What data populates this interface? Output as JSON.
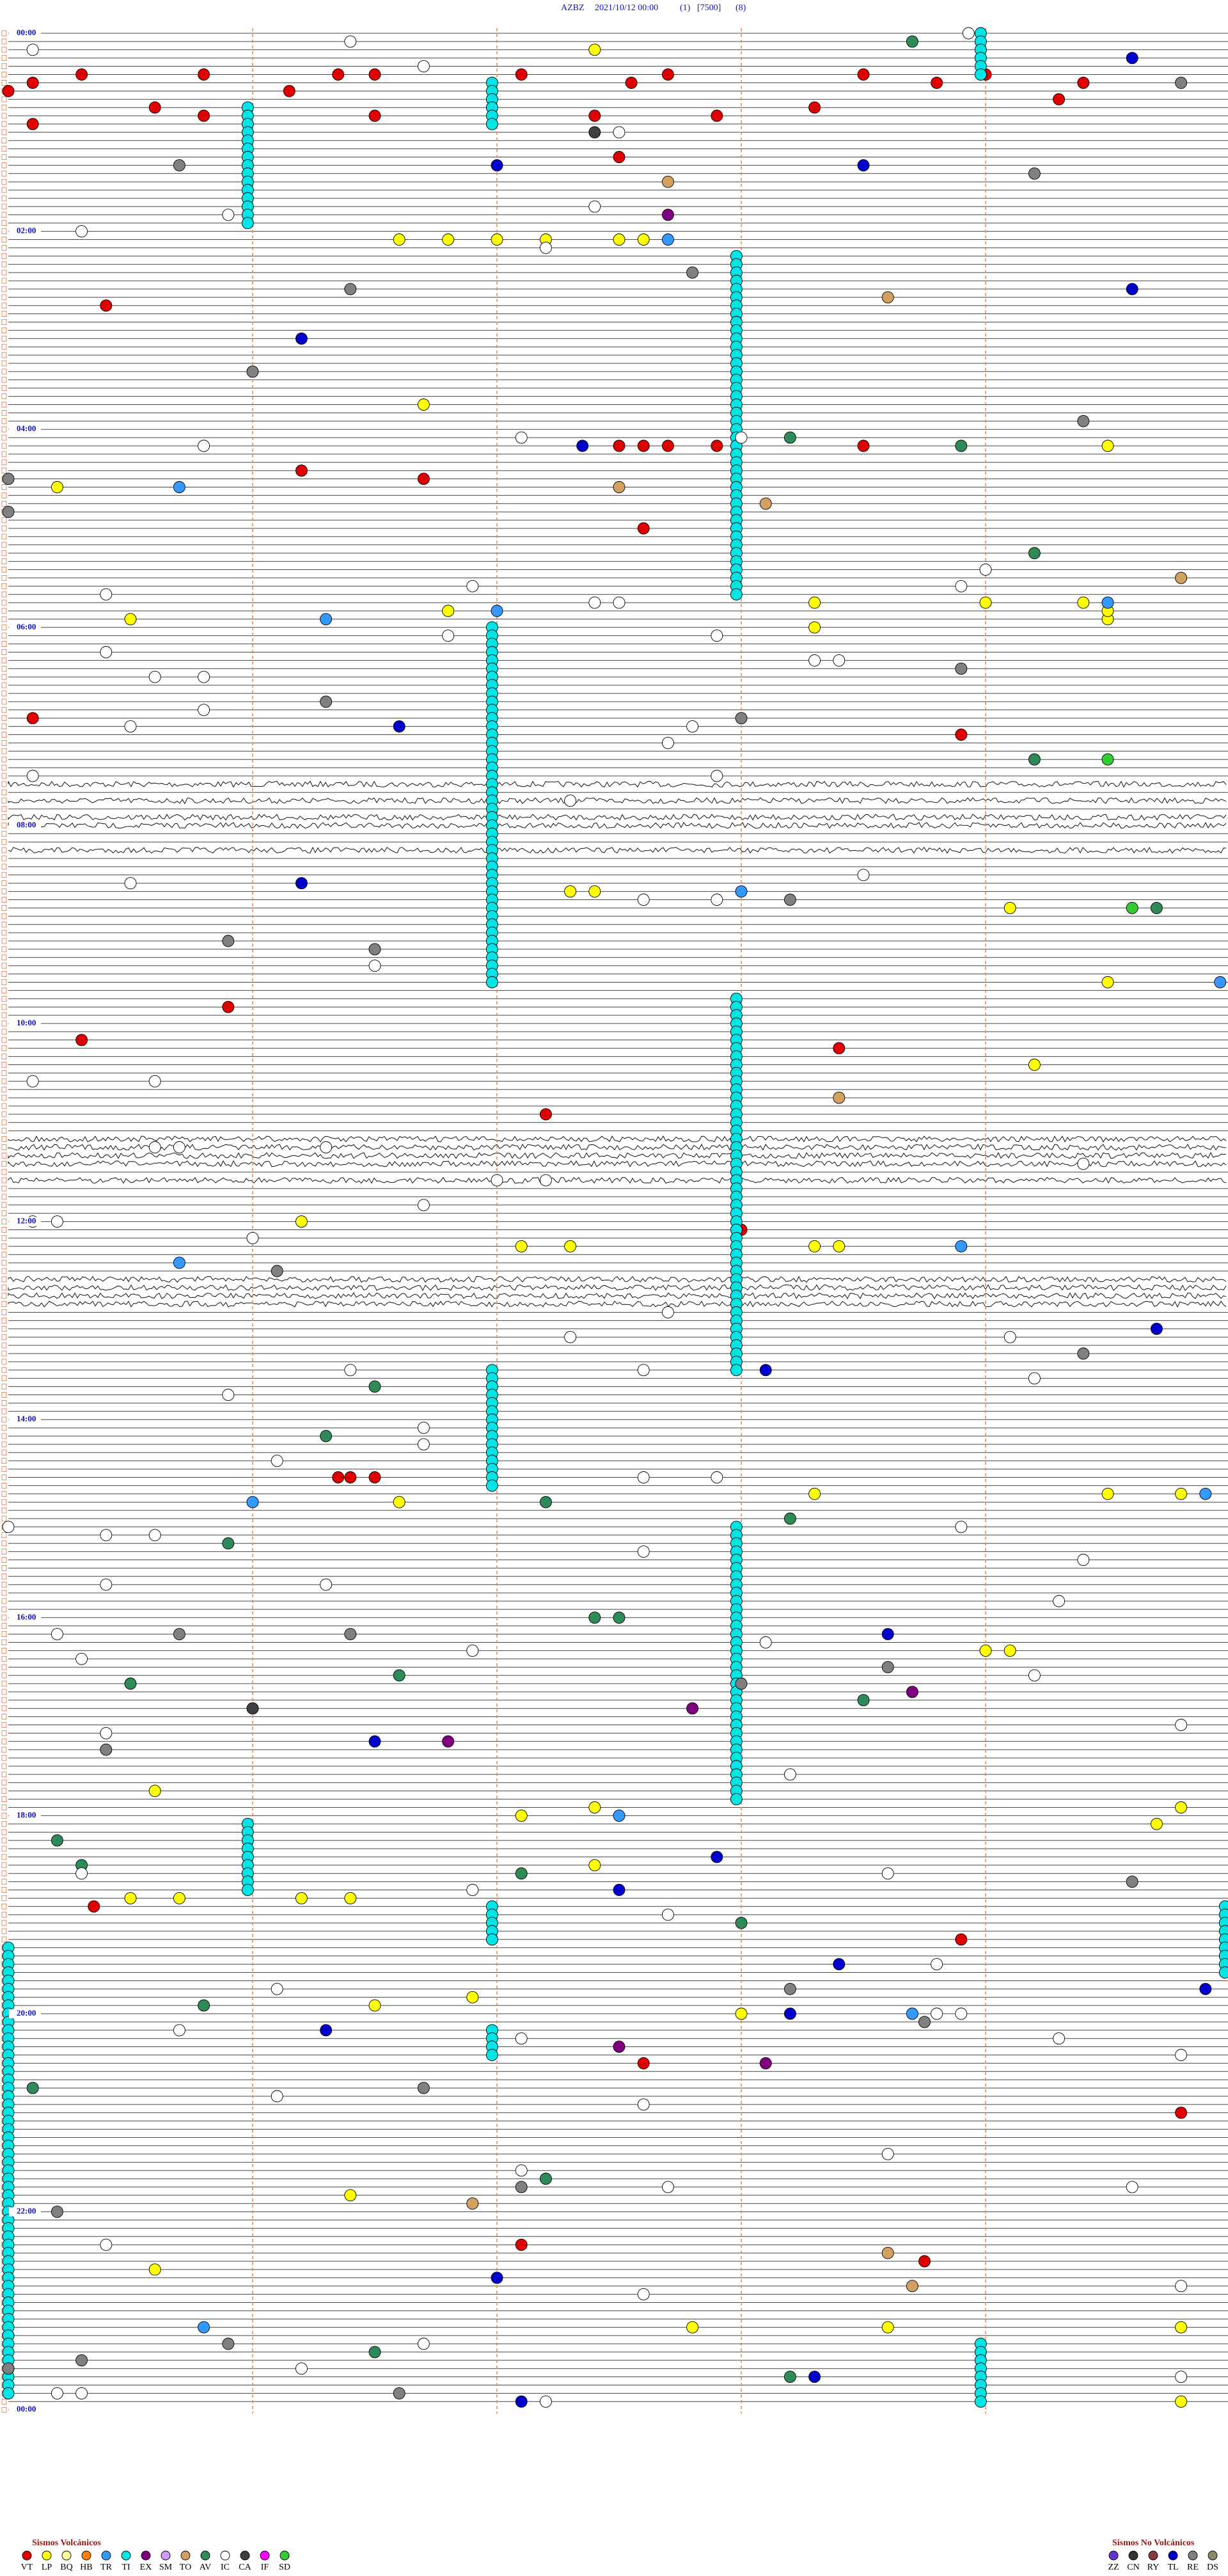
{
  "header": {
    "station": "AZBZ",
    "datetime": "2021/10/12 00:00",
    "channel": "(1)",
    "scale": "[7500]",
    "filter": "(8)"
  },
  "time_labels": [
    "00:00",
    "02:00",
    "04:00",
    "06:00",
    "08:00",
    "10:00",
    "12:00",
    "14:00",
    "16:00",
    "18:00",
    "20:00",
    "22:00",
    "00:00"
  ],
  "noise_rows": [
    91,
    93,
    95,
    96,
    99,
    134,
    135,
    136,
    137,
    139,
    151,
    152,
    153,
    154
  ],
  "legend": {
    "volcanic": {
      "title": "Sismos Volcánicos",
      "items": [
        {
          "code": "VT",
          "color": "#e00000",
          "events": [
            25.3,
            25.8,
            26.35,
            26.5,
            27.1,
            32.55,
            27.7,
            28.5,
            33.8,
            29.0,
            34.4,
            30.1,
            35.0,
            45.6,
            36.15,
            51.5,
            52.4,
            52.9,
            48.3,
            44.3,
            55.1,
            50.8,
            77.5,
            165.4,
            266.2,
            271.7,
            302.6,
            252.5,
            252.6,
            252.7,
            252.9,
            253.5,
            415.1,
            428.9,
            590.9,
            610.3,
            618.4,
            657.2,
            728.0,
            876.35,
            876.4,
            876.5,
            1135.35,
            1232.6,
            1158.9,
            1264.8,
            1342.1,
            1353.75
          ]
        },
        {
          "code": "LP",
          "color": "#ffff00",
          "events": [
            126.6,
            126.8,
            127.0,
            127.2,
            127.5,
            127.6,
            12.4,
            226.7,
            254.5,
            275.2,
            355.5,
            349.4,
            359.5,
            354.5,
            351.8,
            348.3,
            349.0,
            363.3,
            522.3,
            522.4,
            534.1,
            579.5,
            629.2,
            721.2,
            737.1,
            737.3,
            738.3,
            738.4,
            891.6,
            888.3,
            889.5,
            889.8,
            984.0,
            984.1,
            1065.6,
            1082.1,
            1077.4,
            1079.8,
            1089.7,
            1112.4,
            1130.5,
            1130.7,
            1131.2,
            1131.4,
            1196.5,
            1191.9,
            1203.0,
            1311.4,
            1355.6,
            1392.8,
            1393.6,
            1394.8,
            1439.8
          ]
        },
        {
          "code": "BQ",
          "color": "#ffff99",
          "events": []
        },
        {
          "code": "HB",
          "color": "#ff8000",
          "events": []
        },
        {
          "code": "TR",
          "color": "#3399ff",
          "events": [
            275.7,
            356.3,
            352.0,
            127.7,
            349.5,
            523.0,
            745.7,
            738.9,
            891.0,
            889.9,
            1082.5,
            1203.7,
            1395.0,
            1390.8,
            579.96
          ]
        },
        {
          "code": "TI",
          "color": "#00e5e5",
          "events": [],
          "runs": [
            [
              3.98,
              6
            ],
            [
              31.98,
              6
            ],
            [
              45.98,
              15
            ],
            [
              137.98,
              42
            ],
            [
              361.98,
              44
            ],
            [
              587.98,
              13
            ],
            [
              652.98,
              33
            ],
            [
              811.98,
              15
            ],
            [
              907.98,
              34
            ],
            [
              1085.98,
              9
            ],
            [
              1136.98,
              5
            ],
            [
              1211.98,
              4
            ],
            [
              1139.98,
              9
            ],
            [
              1160.0,
              55
            ],
            [
              1403.98,
              8
            ]
          ]
        },
        {
          "code": "EX",
          "color": "#800080",
          "events": [
            112.7,
            1017.8,
            1008.7,
            1036.8,
            1233.1,
            1222.5
          ]
        },
        {
          "code": "SM",
          "color": "#cc99ff",
          "events": []
        },
        {
          "code": "TO",
          "color": "#d2a060",
          "events": [
            334.8,
            92.7,
            277.5,
            163.6,
            288.1,
            648.4,
            1348.6,
            1368.7,
            1316.9
          ]
        },
        {
          "code": "AV",
          "color": "#2e8b57",
          "events": [
            8.7,
            253.9,
            248.2,
            319.2,
            444.2,
            534.7,
            821.5,
            851.3,
            892.2,
            903.2,
            915.9,
            962.4,
            962.5,
            996.6,
            1000.5,
            1013.5,
            1095.2,
            1110.3,
            1117.1,
            1148.0,
            1195.8,
            1245.1,
            1302.2,
            1406.5,
            1423.2
          ]
        },
        {
          "code": "IC",
          "color": "#ffffff",
          "events": [
            10.1,
            6.4,
            21.7,
            3.93,
            62.5,
            110.9,
            120.3,
            107.4,
            132.2,
            250.8,
            248.0,
            247.1,
            340.4,
            347.4,
            347.5,
            336.9,
            329.0,
            338.9,
            366.8,
            367.9,
            375.4,
            390.6,
            390.8,
            420.5,
            410.8,
            422.8,
            432.7,
            383.3,
            383.4,
            450.1,
            452.9,
            467.3,
            527.6,
            527.9,
            513.5,
            515.5,
            566.5,
            635.1,
            635.6,
            689.4,
            675.7,
            675.6,
            676.3,
            711.7,
            697.0,
            697.2,
            731.0,
            720.1,
            720.2,
            777.7,
            792.3,
            794.1,
            811.4,
            825.9,
            812.6,
            819.2,
            846.7,
            856.7,
            866.1,
            877.6,
            877.9,
            905.0,
            910.4,
            910.6,
            908.9,
            922.6,
            940.4,
            941.3,
            929.4,
            954.3,
            970.2,
            985.3,
            981.9,
            978.1,
            999.2,
            1029.8,
            1030.4,
            1058.2,
            1126.9,
            1142.7,
            1115.3,
            1118.6,
            1173.8,
            1186.1,
            1203.8,
            1203.9,
            1210.7,
            1219.3,
            1217.1,
            1229.8,
            1257.6,
            1251.1,
            1288.6,
            1307.7,
            1309.6,
            1297.1,
            1340.4,
            1372.6,
            1401.7,
            1369.8,
            1430.2,
            1430.3,
            1416.2,
            1424.8,
            1437.2
          ]
        },
        {
          "code": "CA",
          "color": "#404040",
          "events": [
            1016.0,
            62.4
          ]
        },
        {
          "code": "IF",
          "color": "#ff00ff",
          "events": []
        },
        {
          "code": "SD",
          "color": "#33cc33",
          "events": [
            444.5,
            534.6
          ]
        }
      ]
    },
    "nonvolcanic": {
      "title": "Sismos No Volcánicos",
      "items": [
        {
          "code": "ZZ",
          "color": "#6633cc",
          "events": []
        },
        {
          "code": "CN",
          "color": "#333333",
          "events": []
        },
        {
          "code": "RY",
          "color": "#8b3a3a",
          "events": []
        },
        {
          "code": "TL",
          "color": "#0000cc",
          "events": [
            19.6,
            82.0,
            83.5,
            186.2,
            159.6,
            252.35,
            421.6,
            516.2,
            973.6,
            1036.5,
            789.7,
            813.1,
            1107.9,
            1127.5,
            1173.4,
            1189.9,
            1203.2,
            1211.3,
            1362.0,
            1423.3,
            1437.1
          ]
        },
        {
          "code": "RE",
          "color": "#808080",
          "events": [
            80.7,
            89.2,
            34.8,
            147.8,
            156.4,
            206.0,
            239.4,
            270.0,
            290.0,
            406.3,
            388.9,
            418.0,
            528.2,
            550.9,
            556.5,
            751.1,
            970.7,
            971.4,
            1003.0,
            1040.4,
            993.6,
            804.4,
            1124.6,
            1188.2,
            1208.75,
            1246.7,
            1307.1,
            1320.2,
            1431.6,
            1415.0,
            1400.9,
            1410.3
          ]
        },
        {
          "code": "DS",
          "color": "#8a8a6a",
          "events": []
        }
      ]
    }
  }
}
